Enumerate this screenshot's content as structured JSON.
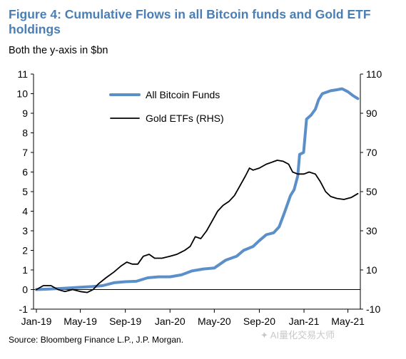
{
  "figure": {
    "title": "Figure 4: Cumulative Flows in all Bitcoin funds and Gold ETF holdings",
    "subtitle": "Both the y-axis in $bn",
    "source": "Source: Bloomberg Finance L.P., J.P. Morgan.",
    "watermark": "✦ AI量化交易大师"
  },
  "chart_data": {
    "type": "line",
    "title": "Figure 4: Cumulative Flows in all Bitcoin funds and Gold ETF holdings",
    "subtitle": "Both the y-axis in $bn",
    "x_range": [
      "2019-01-01",
      "2021-05-31"
    ],
    "x_tick_labels": [
      "Jan-19",
      "May-19",
      "Sep-19",
      "Jan-20",
      "May-20",
      "Sep-20",
      "Jan-21",
      "May-21"
    ],
    "x_tick_dates": [
      "2019-01-01",
      "2019-05-01",
      "2019-09-01",
      "2020-01-01",
      "2020-05-01",
      "2020-09-01",
      "2021-01-01",
      "2021-05-01"
    ],
    "y_left": {
      "min": -1,
      "max": 11,
      "ticks": [
        -1,
        0,
        1,
        2,
        3,
        4,
        5,
        6,
        7,
        8,
        9,
        10,
        11
      ]
    },
    "y_right": {
      "min": -10,
      "max": 110,
      "ticks": [
        -10,
        10,
        30,
        50,
        70,
        90,
        110
      ]
    },
    "legend_position": "top-left",
    "grid": false,
    "series": [
      {
        "name": "All Bitcoin Funds",
        "axis": "left",
        "color": "#5b8fc9",
        "points": [
          [
            "2019-01-01",
            0.0
          ],
          [
            "2019-02-01",
            0.02
          ],
          [
            "2019-03-01",
            0.05
          ],
          [
            "2019-04-01",
            0.08
          ],
          [
            "2019-05-01",
            0.12
          ],
          [
            "2019-06-01",
            0.15
          ],
          [
            "2019-07-01",
            0.2
          ],
          [
            "2019-08-01",
            0.35
          ],
          [
            "2019-09-01",
            0.4
          ],
          [
            "2019-10-01",
            0.42
          ],
          [
            "2019-11-01",
            0.6
          ],
          [
            "2019-12-01",
            0.65
          ],
          [
            "2020-01-01",
            0.65
          ],
          [
            "2020-02-01",
            0.75
          ],
          [
            "2020-03-01",
            0.95
          ],
          [
            "2020-04-01",
            1.05
          ],
          [
            "2020-05-01",
            1.1
          ],
          [
            "2020-06-01",
            1.5
          ],
          [
            "2020-07-01",
            1.7
          ],
          [
            "2020-07-20",
            2.0
          ],
          [
            "2020-08-15",
            2.2
          ],
          [
            "2020-09-01",
            2.5
          ],
          [
            "2020-09-20",
            2.8
          ],
          [
            "2020-10-10",
            2.9
          ],
          [
            "2020-10-25",
            3.2
          ],
          [
            "2020-11-10",
            4.0
          ],
          [
            "2020-11-25",
            4.8
          ],
          [
            "2020-12-05",
            5.1
          ],
          [
            "2020-12-15",
            5.8
          ],
          [
            "2020-12-20",
            6.9
          ],
          [
            "2020-12-31",
            7.0
          ],
          [
            "2021-01-08",
            8.7
          ],
          [
            "2021-01-20",
            8.9
          ],
          [
            "2021-02-01",
            9.2
          ],
          [
            "2021-02-10",
            9.7
          ],
          [
            "2021-02-20",
            10.0
          ],
          [
            "2021-03-15",
            10.15
          ],
          [
            "2021-04-01",
            10.2
          ],
          [
            "2021-04-15",
            10.25
          ],
          [
            "2021-05-01",
            10.1
          ],
          [
            "2021-05-15",
            9.9
          ],
          [
            "2021-05-28",
            9.75
          ]
        ]
      },
      {
        "name": "Gold ETFs (RHS)",
        "axis": "right",
        "color": "#000000",
        "points": [
          [
            "2019-01-01",
            0
          ],
          [
            "2019-01-20",
            2
          ],
          [
            "2019-02-10",
            2
          ],
          [
            "2019-03-01",
            0
          ],
          [
            "2019-03-20",
            -1
          ],
          [
            "2019-04-10",
            0
          ],
          [
            "2019-05-01",
            -1
          ],
          [
            "2019-05-20",
            -1.5
          ],
          [
            "2019-06-05",
            0
          ],
          [
            "2019-06-20",
            3
          ],
          [
            "2019-07-10",
            6
          ],
          [
            "2019-08-01",
            9
          ],
          [
            "2019-08-20",
            12
          ],
          [
            "2019-09-05",
            14
          ],
          [
            "2019-09-20",
            13
          ],
          [
            "2019-10-05",
            13
          ],
          [
            "2019-10-20",
            17
          ],
          [
            "2019-11-05",
            18
          ],
          [
            "2019-11-20",
            16
          ],
          [
            "2019-12-10",
            16
          ],
          [
            "2020-01-01",
            17
          ],
          [
            "2020-01-20",
            18
          ],
          [
            "2020-02-10",
            20
          ],
          [
            "2020-02-25",
            22
          ],
          [
            "2020-03-10",
            27
          ],
          [
            "2020-03-25",
            26
          ],
          [
            "2020-04-10",
            30
          ],
          [
            "2020-04-25",
            35
          ],
          [
            "2020-05-10",
            40
          ],
          [
            "2020-05-25",
            43
          ],
          [
            "2020-06-10",
            45
          ],
          [
            "2020-06-25",
            48
          ],
          [
            "2020-07-10",
            53
          ],
          [
            "2020-07-25",
            58
          ],
          [
            "2020-08-05",
            62
          ],
          [
            "2020-08-15",
            61
          ],
          [
            "2020-09-01",
            62
          ],
          [
            "2020-09-20",
            64
          ],
          [
            "2020-10-05",
            65
          ],
          [
            "2020-10-20",
            66
          ],
          [
            "2020-11-05",
            65.5
          ],
          [
            "2020-11-20",
            64
          ],
          [
            "2020-12-01",
            60
          ],
          [
            "2020-12-15",
            59
          ],
          [
            "2021-01-01",
            59
          ],
          [
            "2021-01-15",
            60
          ],
          [
            "2021-02-01",
            59
          ],
          [
            "2021-02-15",
            55
          ],
          [
            "2021-03-01",
            50
          ],
          [
            "2021-03-15",
            47.5
          ],
          [
            "2021-04-01",
            46.5
          ],
          [
            "2021-04-20",
            46
          ],
          [
            "2021-05-10",
            47
          ],
          [
            "2021-05-28",
            49
          ]
        ]
      }
    ]
  }
}
